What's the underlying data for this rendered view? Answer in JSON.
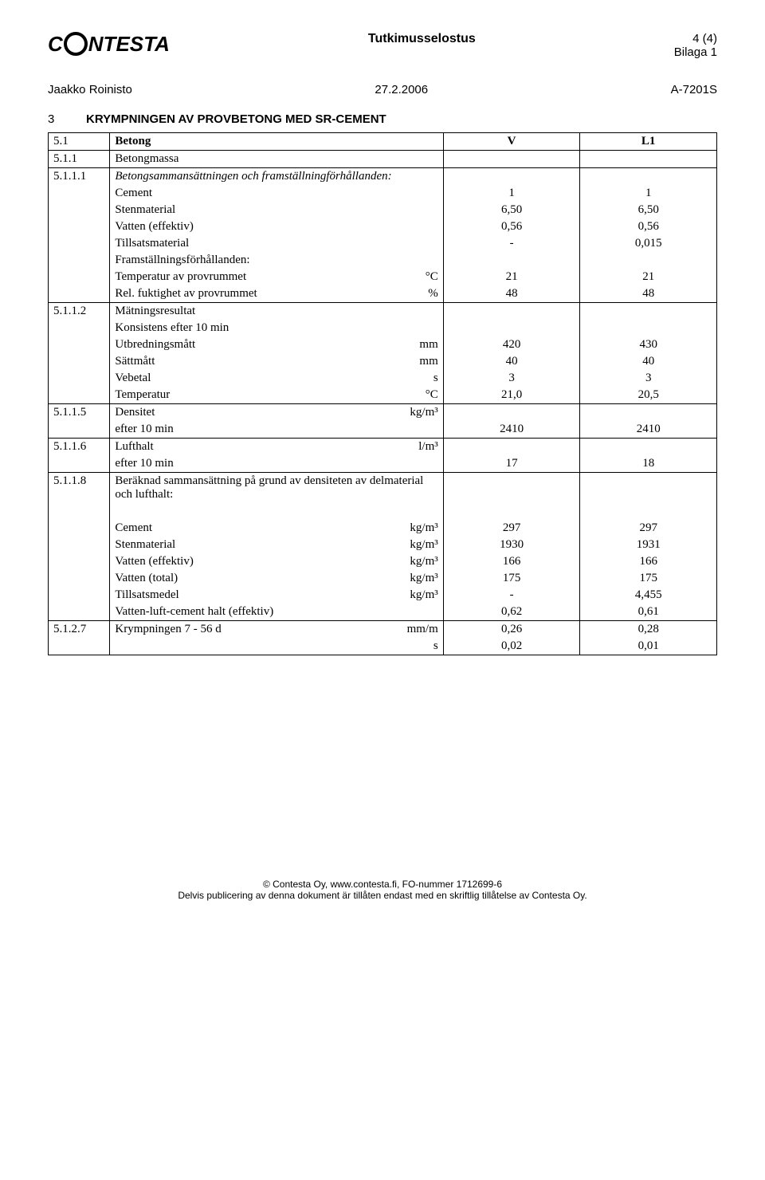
{
  "header": {
    "logo_left": "C",
    "logo_right": "NTESTA",
    "doc_title": "Tutkimusselostus",
    "page_num": "4 (4)",
    "appendix": "Bilaga 1"
  },
  "meta": {
    "author": "Jaakko Roinisto",
    "date": "27.2.2006",
    "report_no": "A-7201S"
  },
  "section": {
    "num": "3",
    "title": "KRYMPNINGEN AV PROVBETONG MED SR-CEMENT"
  },
  "rows": [
    {
      "n": "5.1",
      "label": "Betong",
      "bold": true,
      "v1": "V",
      "v2": "L1",
      "hbold": true
    },
    {
      "n": "5.1.1",
      "label": "Betongmassa"
    },
    {
      "n": "5.1.1.1",
      "label": "Betongsammansättningen och framställningförhållanden:",
      "italic": true
    },
    {
      "label": "Cement",
      "v1": "1",
      "v2": "1"
    },
    {
      "label": "Stenmaterial",
      "v1": "6,50",
      "v2": "6,50"
    },
    {
      "label": "Vatten (effektiv)",
      "v1": "0,56",
      "v2": "0,56"
    },
    {
      "label": "Tillsatsmaterial",
      "v1": "-",
      "v2": "0,015"
    },
    {
      "label": "Framställningsförhållanden:"
    },
    {
      "label": "Temperatur av provrummet",
      "unit": "°C",
      "v1": "21",
      "v2": "21"
    },
    {
      "label": "Rel. fuktighet av provrummet",
      "unit": "%",
      "v1": "48",
      "v2": "48"
    },
    {
      "n": "5.1.1.2",
      "label": "Mätningsresultat"
    },
    {
      "label": "Konsistens efter 10 min"
    },
    {
      "label": "Utbredningsmått",
      "unit": "mm",
      "v1": "420",
      "v2": "430"
    },
    {
      "label": "Sättmått",
      "unit": "mm",
      "v1": "40",
      "v2": "40"
    },
    {
      "label": "Vebetal",
      "unit": "s",
      "v1": "3",
      "v2": "3"
    },
    {
      "label": "Temperatur",
      "unit": "°C",
      "v1": "21,0",
      "v2": "20,5"
    },
    {
      "n": "5.1.1.5",
      "label": "Densitet",
      "unit": "kg/m³"
    },
    {
      "label": "efter 10 min",
      "v1": "2410",
      "v2": "2410"
    },
    {
      "n": "5.1.1.6",
      "label": "Lufthalt",
      "unit": "l/m³"
    },
    {
      "label": "efter 10 min",
      "v1": "17",
      "v2": "18"
    },
    {
      "n": "5.1.1.8",
      "label": " Beräknad sammansättning på grund av densiteten av delmaterial och lufthalt:"
    },
    {
      "spacer": true
    },
    {
      "label": "Cement",
      "unit": "kg/m³",
      "v1": "297",
      "v2": "297"
    },
    {
      "label": "Stenmaterial",
      "unit": "kg/m³",
      "v1": "1930",
      "v2": "1931"
    },
    {
      "label": "Vatten (effektiv)",
      "unit": "kg/m³",
      "v1": "166",
      "v2": "166"
    },
    {
      "label": "Vatten (total)",
      "unit": "kg/m³",
      "v1": "175",
      "v2": "175"
    },
    {
      "label": "Tillsatsmedel",
      "unit": "kg/m³",
      "v1": "-",
      "v2": "4,455"
    },
    {
      "label": "Vatten-luft-cement halt (effektiv)",
      "v1": "0,62",
      "v2": "0,61"
    },
    {
      "n": "5.1.2.7",
      "label": "Krympningen 7 - 56 d",
      "unit": "mm/m",
      "v1": "0,26",
      "v2": "0,28"
    },
    {
      "label": "",
      "unit": "s",
      "v1": "0,02",
      "v2": "0,01"
    }
  ],
  "footer": {
    "line1": "© Contesta Oy, www.contesta.fi, FO-nummer 1712699-6",
    "line2": "Delvis publicering av denna dokument är tillåten endast med en skriftlig tillåtelse av Contesta Oy."
  }
}
